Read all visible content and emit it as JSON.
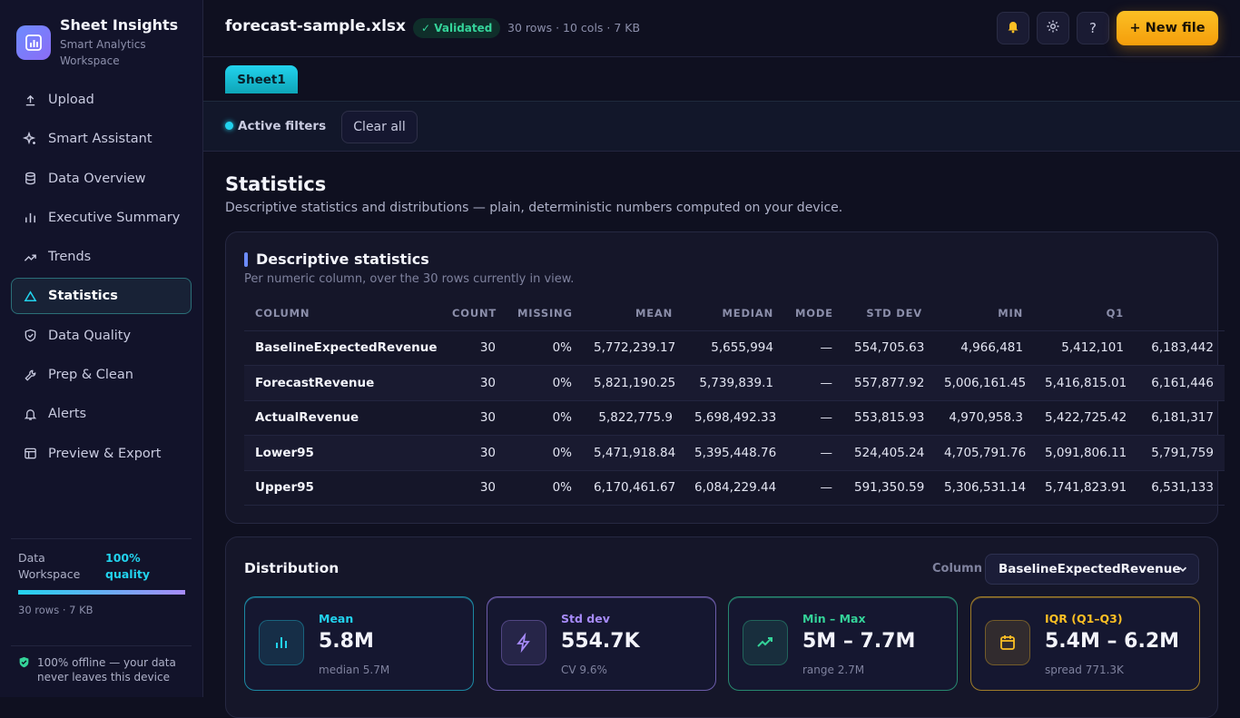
{
  "brand": {
    "title": "Sheet Insights",
    "subtitle": "Smart Analytics Workspace"
  },
  "sidebar": {
    "items": [
      {
        "label": "Upload",
        "icon": "upload-icon"
      },
      {
        "label": "Smart Assistant",
        "icon": "sparkle-icon"
      },
      {
        "label": "Data Overview",
        "icon": "database-icon"
      },
      {
        "label": "Executive Summary",
        "icon": "bar-chart-icon"
      },
      {
        "label": "Trends",
        "icon": "trend-icon"
      },
      {
        "label": "Statistics",
        "icon": "triangle-icon",
        "active": true
      },
      {
        "label": "Data Quality",
        "icon": "shield-icon"
      },
      {
        "label": "Prep & Clean",
        "icon": "wrench-icon"
      },
      {
        "label": "Alerts",
        "icon": "bell-icon"
      },
      {
        "label": "Preview & Export",
        "icon": "layout-icon"
      }
    ],
    "quality": {
      "label": "Data Workspace",
      "value": "100% quality",
      "fill": 1.0,
      "meta": "30 rows · 7 KB"
    },
    "offline": "100% offline — your data never leaves this device"
  },
  "header": {
    "file_name": "forecast-sample.xlsx",
    "badge": "✓ Validated",
    "meta": "30 rows · 10 cols · 7 KB",
    "new_file": "+ New file",
    "help": "?"
  },
  "tabs": {
    "sheet": "Sheet1"
  },
  "filters": {
    "label": "Active filters",
    "clear": "Clear all"
  },
  "page": {
    "title": "Statistics",
    "subtitle": "Descriptive statistics and distributions — plain, deterministic numbers computed on your device."
  },
  "descriptive": {
    "title": "Descriptive statistics",
    "subtitle": "Per numeric column, over the 30 rows currently in view.",
    "headers": [
      "COLUMN",
      "COUNT",
      "MISSING",
      "MEAN",
      "MEDIAN",
      "MODE",
      "STD DEV",
      "MIN",
      "Q1",
      ""
    ],
    "rows": [
      [
        "BaselineExpectedRevenue",
        "30",
        "0%",
        "5,772,239.17",
        "5,655,994",
        "—",
        "554,705.63",
        "4,966,481",
        "5,412,101",
        "6,183,442"
      ],
      [
        "ForecastRevenue",
        "30",
        "0%",
        "5,821,190.25",
        "5,739,839.1",
        "—",
        "557,877.92",
        "5,006,161.45",
        "5,416,815.01",
        "6,161,446"
      ],
      [
        "ActualRevenue",
        "30",
        "0%",
        "5,822,775.9",
        "5,698,492.33",
        "—",
        "553,815.93",
        "4,970,958.3",
        "5,422,725.42",
        "6,181,317"
      ],
      [
        "Lower95",
        "30",
        "0%",
        "5,471,918.84",
        "5,395,448.76",
        "—",
        "524,405.24",
        "4,705,791.76",
        "5,091,806.11",
        "5,791,759"
      ],
      [
        "Upper95",
        "30",
        "0%",
        "6,170,461.67",
        "6,084,229.44",
        "—",
        "591,350.59",
        "5,306,531.14",
        "5,741,823.91",
        "6,531,133"
      ]
    ]
  },
  "distribution": {
    "title": "Distribution",
    "column_label": "Column",
    "selected_column": "BaselineExpectedRevenue",
    "stats": [
      {
        "label": "Mean",
        "value": "5.8M",
        "sub": "median 5.7M",
        "color": "#22d3ee",
        "icon": "bars-icon"
      },
      {
        "label": "Std dev",
        "value": "554.7K",
        "sub": "CV 9.6%",
        "color": "#a78bfa",
        "icon": "bolt-icon"
      },
      {
        "label": "Min – Max",
        "value": "5M – 7.7M",
        "sub": "range 2.7M",
        "color": "#34d399",
        "icon": "trend-up-icon"
      },
      {
        "label": "IQR (Q1–Q3)",
        "value": "5.4M – 6.2M",
        "sub": "spread 771.3K",
        "color": "#fbbf24",
        "icon": "calendar-icon"
      }
    ]
  }
}
